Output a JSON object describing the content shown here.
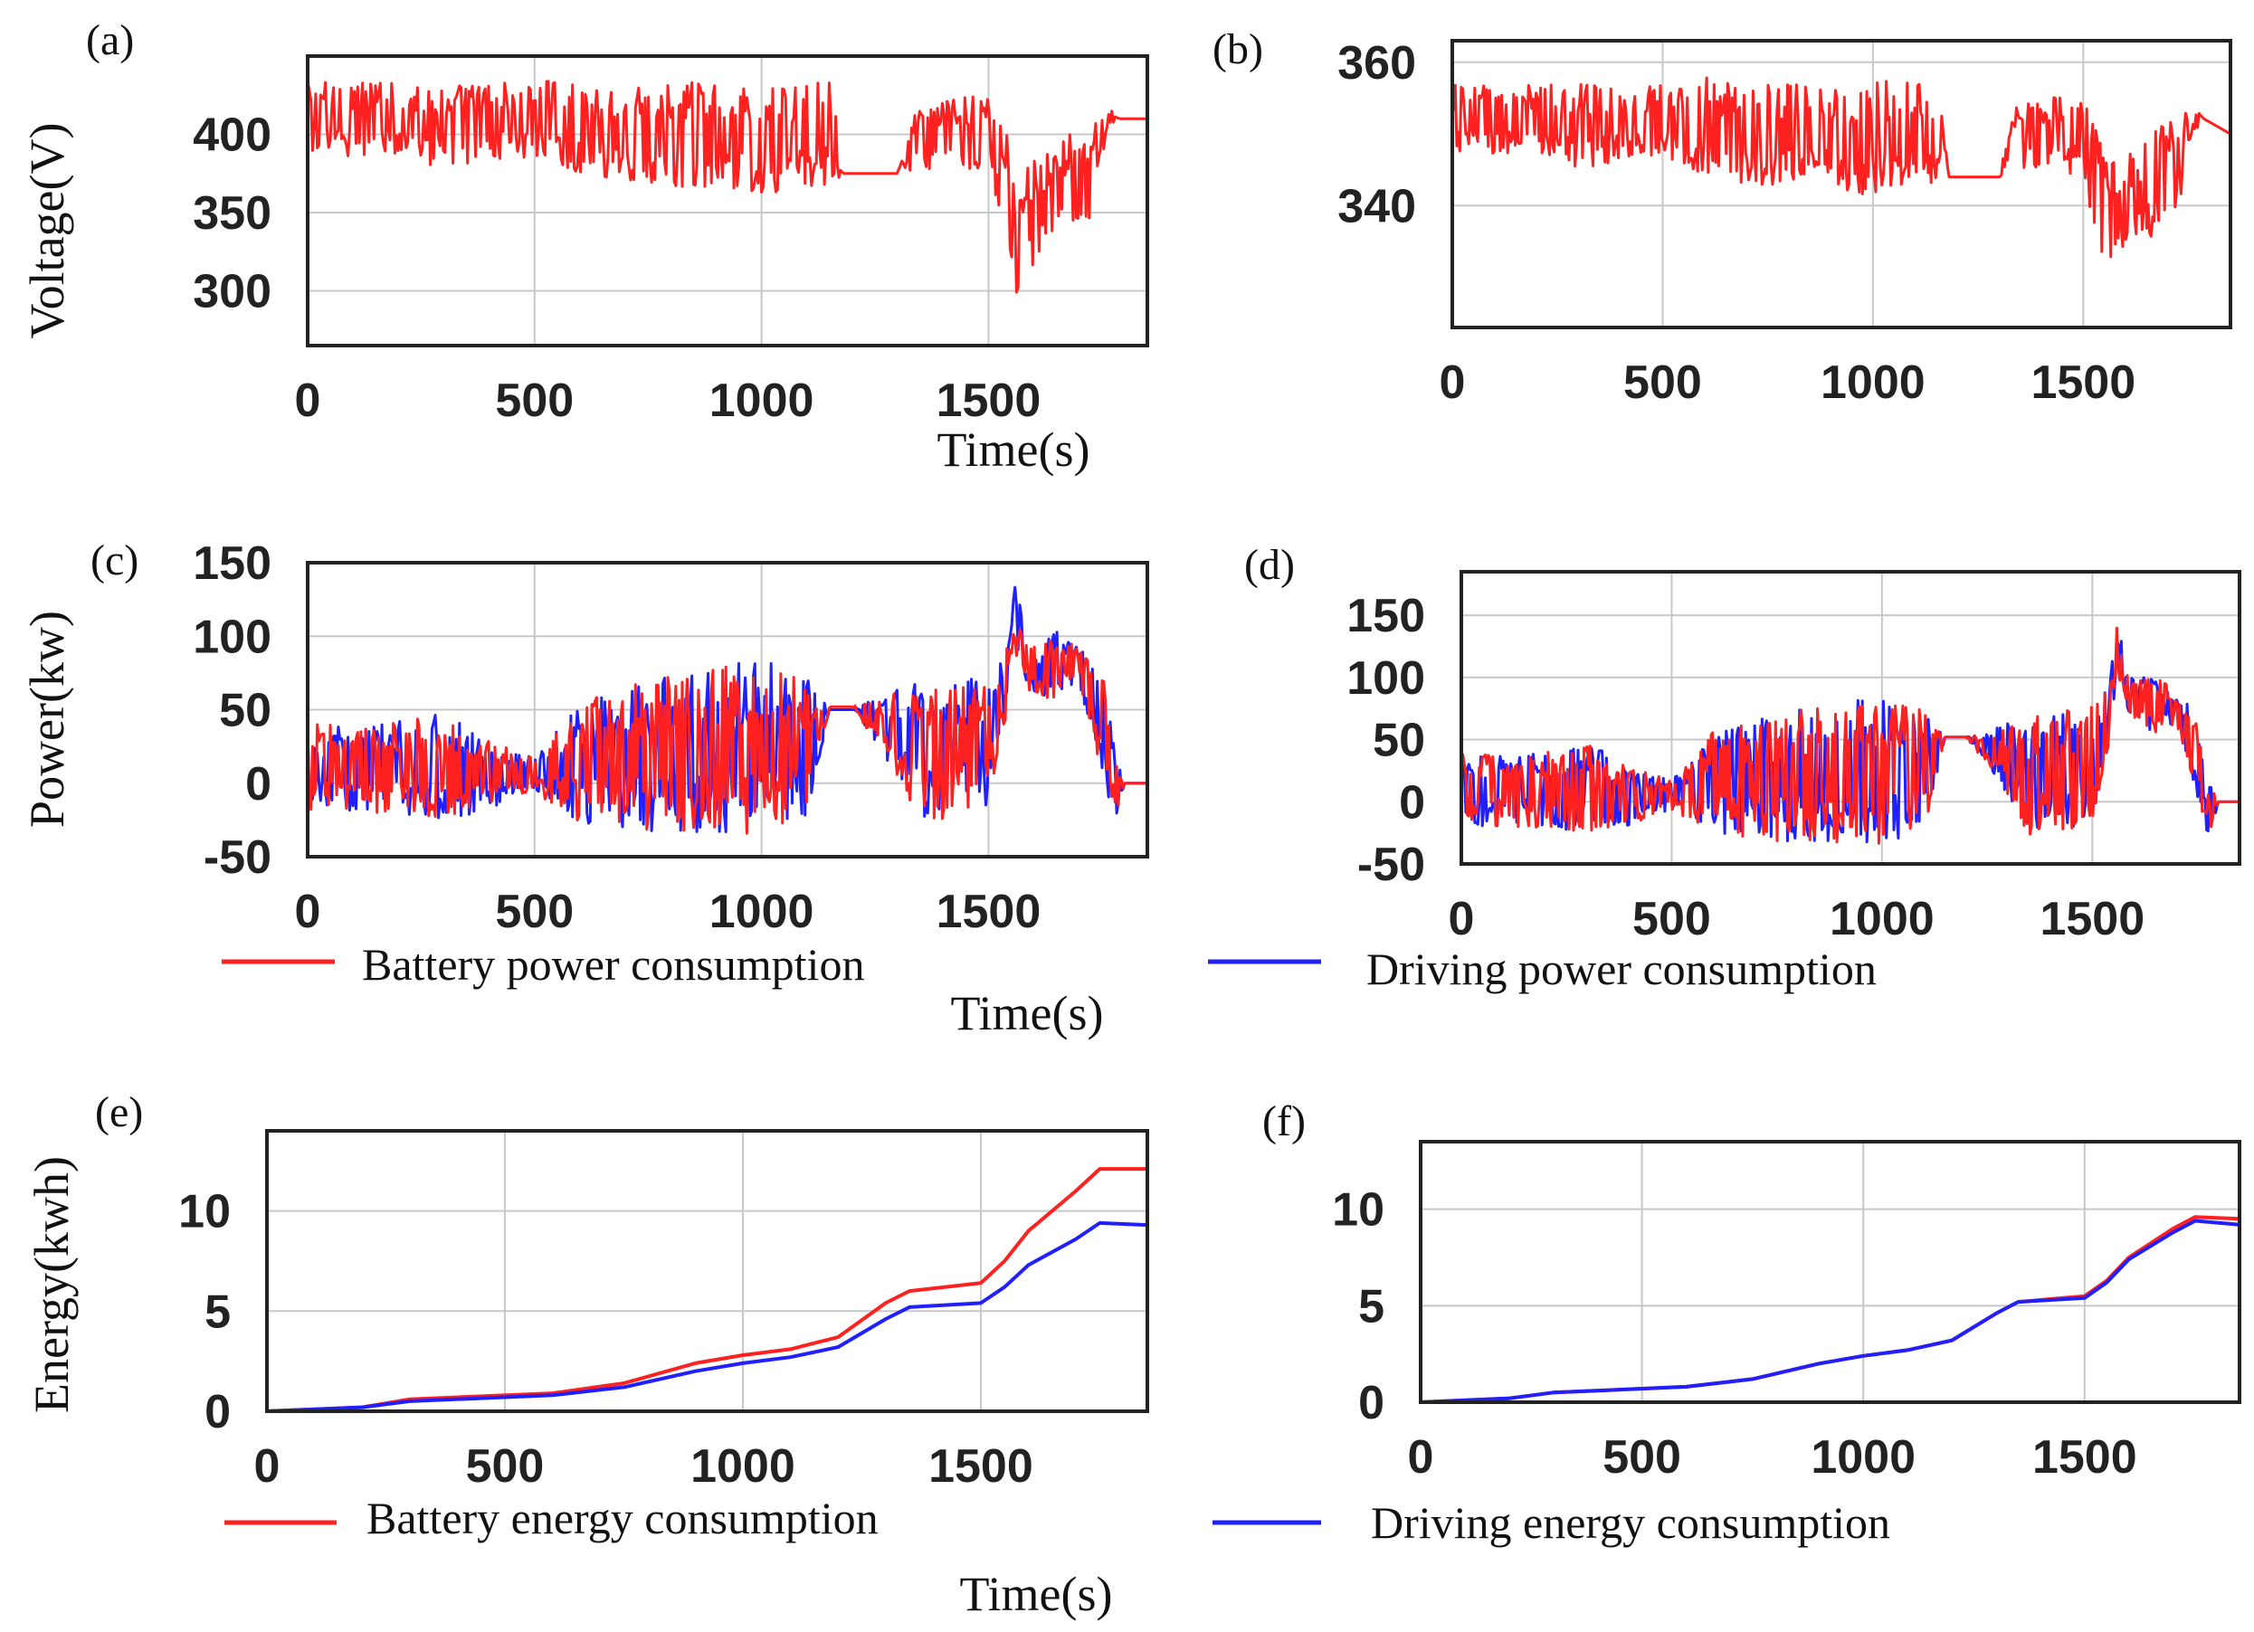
{
  "chart_data": [
    {
      "id": "a",
      "type": "line",
      "panel_label": "(a)",
      "title": "",
      "xlabel": "Time(s)",
      "ylabel": "Voltage(V)",
      "xlim": [
        0,
        1850
      ],
      "ylim": [
        265,
        450
      ],
      "xticks": [
        0,
        500,
        1000,
        1500
      ],
      "yticks": [
        300,
        350,
        400
      ],
      "xtick_labels": [
        "0",
        "500",
        "1000",
        "1500"
      ],
      "ytick_labels": [
        "300",
        "350",
        "400"
      ],
      "grid": true,
      "series": [
        {
          "name": "Voltage",
          "color": "#ff2020",
          "style": "noisy",
          "x": [
            0,
            150,
            300,
            500,
            600,
            700,
            820,
            900,
            1000,
            1100,
            1160,
            1180,
            1300,
            1330,
            1400,
            1500,
            1530,
            1560,
            1590,
            1600,
            1650,
            1700,
            1720,
            1760,
            1790,
            1850
          ],
          "y": [
            410,
            410,
            405,
            410,
            405,
            400,
            400,
            400,
            395,
            400,
            400,
            375,
            375,
            395,
            400,
            400,
            375,
            330,
            345,
            350,
            360,
            370,
            370,
            410,
            410,
            410
          ],
          "amp": [
            20,
            20,
            22,
            20,
            25,
            25,
            28,
            28,
            30,
            28,
            28,
            0,
            0,
            15,
            18,
            22,
            35,
            40,
            30,
            30,
            30,
            30,
            30,
            8,
            0,
            0
          ]
        }
      ]
    },
    {
      "id": "b",
      "type": "line",
      "panel_label": "(b)",
      "title": "",
      "xlabel": "",
      "ylabel": "",
      "xlim": [
        0,
        1850
      ],
      "ylim": [
        323,
        363
      ],
      "xticks": [
        0,
        500,
        1000,
        1500
      ],
      "yticks": [
        340,
        360
      ],
      "xtick_labels": [
        "0",
        "500",
        "1000",
        "1500"
      ],
      "ytick_labels": [
        "340",
        "360"
      ],
      "grid": true,
      "series": [
        {
          "name": "Voltage",
          "color": "#ff2020",
          "style": "noisy",
          "x": [
            0,
            150,
            300,
            500,
            600,
            700,
            820,
            900,
            1000,
            1100,
            1160,
            1180,
            1300,
            1330,
            1400,
            1500,
            1530,
            1560,
            1590,
            1600,
            1650,
            1700,
            1720,
            1760,
            1790,
            1850
          ],
          "y": [
            352,
            352,
            351,
            352,
            351,
            350,
            350,
            350,
            349,
            350,
            350,
            344,
            344,
            349,
            350,
            350,
            344,
            336,
            340,
            340,
            342,
            345,
            345,
            352,
            352,
            350
          ],
          "amp": [
            4,
            4,
            5,
            4,
            6,
            6,
            6,
            6,
            7,
            6,
            6,
            0,
            0,
            4,
            4,
            5,
            8,
            8,
            6,
            6,
            6,
            6,
            6,
            2,
            0,
            0
          ]
        }
      ]
    },
    {
      "id": "c",
      "type": "line",
      "panel_label": "(c)",
      "title": "",
      "xlabel": "Time(s)",
      "ylabel": "Power(kw)",
      "xlim": [
        0,
        1850
      ],
      "ylim": [
        -50,
        150
      ],
      "xticks": [
        0,
        500,
        1000,
        1500
      ],
      "yticks": [
        -50,
        0,
        50,
        100,
        150
      ],
      "xtick_labels": [
        "0",
        "500",
        "1000",
        "1500"
      ],
      "ytick_labels": [
        "-50",
        "0",
        "50",
        "100",
        "150"
      ],
      "grid": true,
      "series": [
        {
          "name": "Driving power consumption",
          "color": "#2020ff",
          "style": "noisy",
          "x": [
            0,
            150,
            300,
            400,
            500,
            600,
            800,
            1000,
            1100,
            1150,
            1200,
            1300,
            1350,
            1500,
            1540,
            1560,
            1580,
            1600,
            1650,
            1700,
            1750,
            1780,
            1800,
            1850
          ],
          "y": [
            10,
            10,
            12,
            5,
            5,
            15,
            20,
            25,
            25,
            50,
            50,
            35,
            20,
            30,
            70,
            115,
            90,
            75,
            80,
            80,
            40,
            0,
            0,
            0
          ],
          "amp": [
            25,
            25,
            30,
            20,
            10,
            35,
            45,
            50,
            40,
            0,
            0,
            25,
            40,
            40,
            20,
            20,
            15,
            15,
            20,
            10,
            30,
            20,
            0,
            0
          ]
        },
        {
          "name": "Battery power consumption",
          "color": "#ff2020",
          "style": "noisy",
          "x": [
            0,
            150,
            300,
            400,
            500,
            600,
            800,
            1000,
            1100,
            1150,
            1200,
            1300,
            1350,
            1500,
            1540,
            1560,
            1580,
            1600,
            1650,
            1700,
            1750,
            1780,
            1800,
            1850
          ],
          "y": [
            10,
            10,
            12,
            5,
            5,
            15,
            20,
            25,
            25,
            52,
            52,
            35,
            20,
            30,
            70,
            95,
            85,
            75,
            80,
            82,
            40,
            0,
            0,
            0
          ],
          "amp": [
            25,
            25,
            30,
            20,
            10,
            35,
            45,
            50,
            40,
            0,
            0,
            25,
            40,
            40,
            20,
            10,
            15,
            15,
            20,
            10,
            30,
            20,
            0,
            0
          ]
        }
      ],
      "legend": [
        "Battery power consumption",
        "Driving power consumption"
      ]
    },
    {
      "id": "d",
      "type": "line",
      "panel_label": "(d)",
      "title": "",
      "xlabel": "",
      "ylabel": "",
      "xlim": [
        0,
        1850
      ],
      "ylim": [
        -50,
        185
      ],
      "xticks": [
        0,
        500,
        1000,
        1500
      ],
      "yticks": [
        -50,
        0,
        50,
        100,
        150
      ],
      "xtick_labels": [
        "0",
        "500",
        "1000",
        "1500"
      ],
      "ytick_labels": [
        "-50",
        "0",
        "50",
        "100",
        "150"
      ],
      "grid": true,
      "series": [
        {
          "name": "Driving power consumption",
          "color": "#2020ff",
          "style": "noisy",
          "x": [
            0,
            150,
            300,
            400,
            500,
            600,
            800,
            1000,
            1100,
            1150,
            1200,
            1300,
            1350,
            1500,
            1540,
            1560,
            1580,
            1600,
            1650,
            1700,
            1750,
            1780,
            1800,
            1850
          ],
          "y": [
            10,
            10,
            12,
            5,
            5,
            15,
            20,
            25,
            25,
            52,
            52,
            35,
            20,
            30,
            70,
            120,
            95,
            80,
            80,
            75,
            40,
            -10,
            0,
            0
          ],
          "amp": [
            25,
            25,
            30,
            20,
            10,
            35,
            45,
            50,
            40,
            0,
            0,
            25,
            40,
            40,
            20,
            20,
            15,
            15,
            20,
            10,
            30,
            20,
            0,
            0
          ]
        },
        {
          "name": "Battery power consumption",
          "color": "#ff2020",
          "style": "noisy",
          "x": [
            0,
            150,
            300,
            400,
            500,
            600,
            800,
            1000,
            1100,
            1150,
            1200,
            1300,
            1350,
            1500,
            1540,
            1560,
            1580,
            1600,
            1650,
            1700,
            1750,
            1780,
            1800,
            1850
          ],
          "y": [
            10,
            10,
            12,
            5,
            5,
            15,
            20,
            25,
            25,
            52,
            52,
            35,
            20,
            30,
            70,
            125,
            95,
            80,
            80,
            75,
            40,
            -10,
            0,
            0
          ],
          "amp": [
            25,
            25,
            30,
            20,
            10,
            35,
            45,
            50,
            40,
            0,
            0,
            25,
            40,
            40,
            20,
            20,
            15,
            15,
            20,
            10,
            30,
            20,
            0,
            0
          ]
        }
      ],
      "legend": [
        "Battery power consumption",
        "Driving power consumption"
      ]
    },
    {
      "id": "e",
      "type": "line",
      "panel_label": "(e)",
      "title": "",
      "xlabel": "Time(s)",
      "ylabel": "Energy(kwh)",
      "xlim": [
        0,
        1850
      ],
      "ylim": [
        0,
        14
      ],
      "xticks": [
        0,
        500,
        1000,
        1500
      ],
      "yticks": [
        0,
        5,
        10
      ],
      "xtick_labels": [
        "0",
        "500",
        "1000",
        "1500"
      ],
      "ytick_labels": [
        "0",
        "5",
        "10"
      ],
      "grid": true,
      "series": [
        {
          "name": "Battery energy consumption",
          "color": "#ff2020",
          "style": "smooth",
          "x": [
            0,
            200,
            300,
            600,
            750,
            900,
            1000,
            1100,
            1200,
            1300,
            1350,
            1500,
            1550,
            1600,
            1700,
            1750,
            1850
          ],
          "y": [
            0,
            0.2,
            0.6,
            0.9,
            1.4,
            2.4,
            2.8,
            3.1,
            3.7,
            5.4,
            6.0,
            6.4,
            7.5,
            9.0,
            11.0,
            12.1,
            12.1
          ]
        },
        {
          "name": "Driving energy consumption",
          "color": "#2020ff",
          "style": "smooth",
          "x": [
            0,
            200,
            300,
            600,
            750,
            900,
            1000,
            1100,
            1200,
            1300,
            1350,
            1500,
            1550,
            1600,
            1700,
            1750,
            1850
          ],
          "y": [
            0,
            0.2,
            0.5,
            0.8,
            1.2,
            2.0,
            2.4,
            2.7,
            3.2,
            4.6,
            5.2,
            5.4,
            6.2,
            7.3,
            8.6,
            9.4,
            9.3
          ]
        }
      ],
      "legend": [
        "Battery energy consumption",
        "Driving energy consumption"
      ]
    },
    {
      "id": "f",
      "type": "line",
      "panel_label": "(f)",
      "title": "",
      "xlabel": "",
      "ylabel": "",
      "xlim": [
        0,
        1850
      ],
      "ylim": [
        0,
        13.5
      ],
      "xticks": [
        0,
        500,
        1000,
        1500
      ],
      "yticks": [
        0,
        5,
        10
      ],
      "xtick_labels": [
        "0",
        "500",
        "1000",
        "1500"
      ],
      "ytick_labels": [
        "0",
        "5",
        "10"
      ],
      "grid": true,
      "series": [
        {
          "name": "Battery energy consumption",
          "color": "#ff2020",
          "style": "smooth",
          "x": [
            0,
            200,
            300,
            600,
            750,
            900,
            1000,
            1100,
            1200,
            1300,
            1350,
            1500,
            1550,
            1600,
            1700,
            1750,
            1850
          ],
          "y": [
            0,
            0.2,
            0.5,
            0.8,
            1.2,
            2.0,
            2.4,
            2.7,
            3.2,
            4.6,
            5.2,
            5.5,
            6.3,
            7.5,
            9.0,
            9.6,
            9.5
          ]
        },
        {
          "name": "Driving energy consumption",
          "color": "#2020ff",
          "style": "smooth",
          "x": [
            0,
            200,
            300,
            600,
            750,
            900,
            1000,
            1100,
            1200,
            1300,
            1350,
            1500,
            1550,
            1600,
            1700,
            1750,
            1850
          ],
          "y": [
            0,
            0.2,
            0.5,
            0.8,
            1.2,
            2.0,
            2.4,
            2.7,
            3.2,
            4.6,
            5.2,
            5.4,
            6.2,
            7.4,
            8.8,
            9.4,
            9.2
          ]
        }
      ],
      "legend": [
        "Battery energy consumption",
        "Driving energy consumption"
      ]
    }
  ]
}
